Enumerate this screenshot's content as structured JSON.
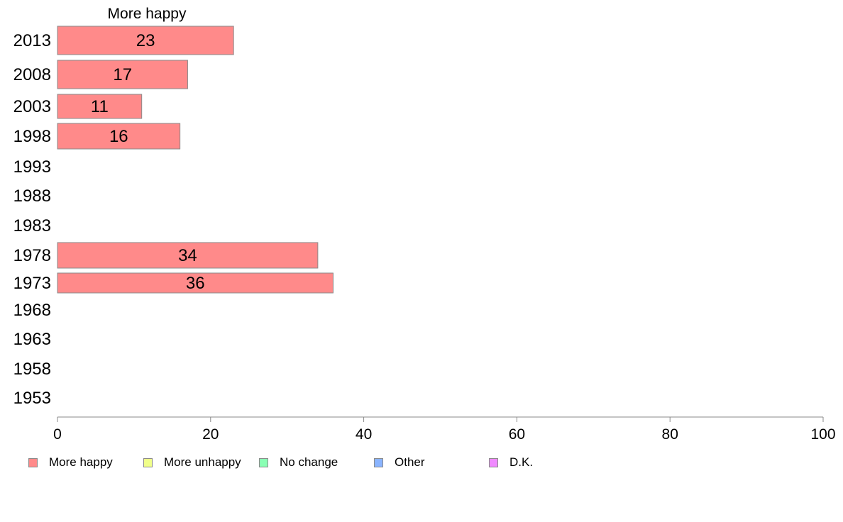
{
  "chart_data": {
    "type": "bar",
    "orientation": "horizontal",
    "title": "More happy",
    "categories": [
      "2013",
      "2008",
      "2003",
      "1998",
      "1993",
      "1988",
      "1983",
      "1978",
      "1973",
      "1968",
      "1963",
      "1958",
      "1953"
    ],
    "series": [
      {
        "name": "More happy",
        "values": [
          23,
          17,
          11,
          16,
          null,
          null,
          null,
          34,
          36,
          null,
          null,
          null,
          null
        ],
        "color": "#ff8a8a"
      }
    ],
    "data_labels": [
      "23",
      "17",
      "11",
      "16",
      "",
      "",
      "",
      "34",
      "36",
      "",
      "",
      "",
      ""
    ],
    "xlim": [
      0,
      100
    ],
    "xticks": [
      "0",
      "20",
      "40",
      "60",
      "80",
      "100"
    ],
    "legend_position": "bottom",
    "legend": [
      {
        "label": "More happy",
        "color": "#ff8a8a"
      },
      {
        "label": "More unhappy",
        "color": "#f0ff8a"
      },
      {
        "label": "No change",
        "color": "#8affb4"
      },
      {
        "label": "Other",
        "color": "#8ab4ff"
      },
      {
        "label": "D.K.",
        "color": "#f08aff"
      }
    ]
  }
}
